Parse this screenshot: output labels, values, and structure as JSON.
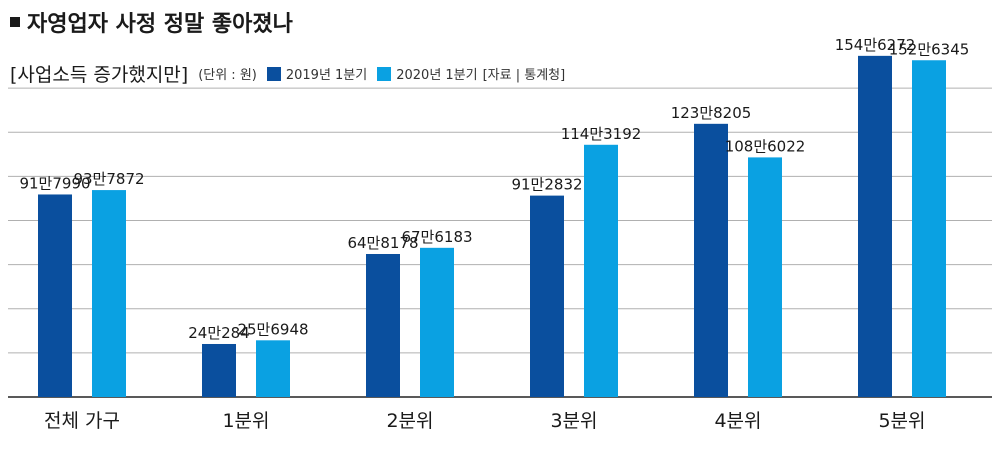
{
  "header": {
    "title": "자영업자 사정 정말 좋아졌나",
    "subtitle": "[사업소득 증가했지만]",
    "unit": "(단위 : 원)",
    "source": "[자료 | 통계청]"
  },
  "colors": {
    "series_2019": "#0a4f9e",
    "series_2020": "#0aa1e2",
    "grid": "#b0b0b0",
    "axis": "#222222"
  },
  "chart_data": {
    "type": "bar",
    "title": "자영업자 사정 정말 좋아졌나",
    "subtitle": "[사업소득 증가했지만]",
    "unit": "(단위 : 원)",
    "categories": [
      "전체 가구",
      "1분위",
      "2분위",
      "3분위",
      "4분위",
      "5분위"
    ],
    "series": [
      {
        "name": "2019년 1분기",
        "values": [
          917990,
          240284,
          648178,
          912832,
          1238205,
          1546272
        ],
        "labels": [
          "91만7990",
          "24만284",
          "64만8178",
          "91만2832",
          "123만8205",
          "154만6272"
        ]
      },
      {
        "name": "2020년 1분기",
        "values": [
          937872,
          256948,
          676183,
          1143192,
          1086022,
          1526345
        ],
        "labels": [
          "93만7872",
          "25만6948",
          "67만6183",
          "114만3192",
          "108만6022",
          "152만6345"
        ]
      }
    ],
    "ylim": [
      0,
      1600000
    ],
    "grid": true,
    "legend": "top",
    "source": "[자료 | 통계청]"
  }
}
